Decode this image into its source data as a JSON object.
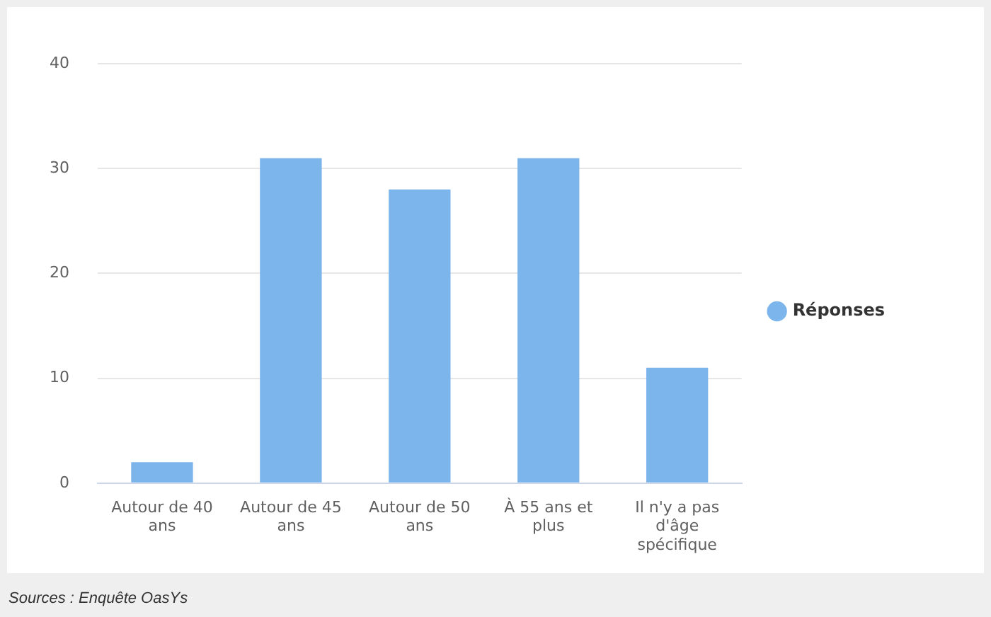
{
  "chart_data": {
    "type": "bar",
    "categories": [
      "Autour de 40 ans",
      "Autour de 45 ans",
      "Autour de 50 ans",
      "À 55 ans et plus",
      "Il n'y a pas d'âge spécifique"
    ],
    "series": [
      {
        "name": "Réponses",
        "color": "#7cb5ec",
        "values": [
          2,
          31,
          28,
          31,
          11
        ]
      }
    ],
    "ylim": [
      0,
      40
    ],
    "yticks": [
      0,
      10,
      20,
      30,
      40
    ],
    "grid": "y",
    "legend": "right",
    "annotations": [
      "Sources : Enquête OasYs"
    ]
  }
}
